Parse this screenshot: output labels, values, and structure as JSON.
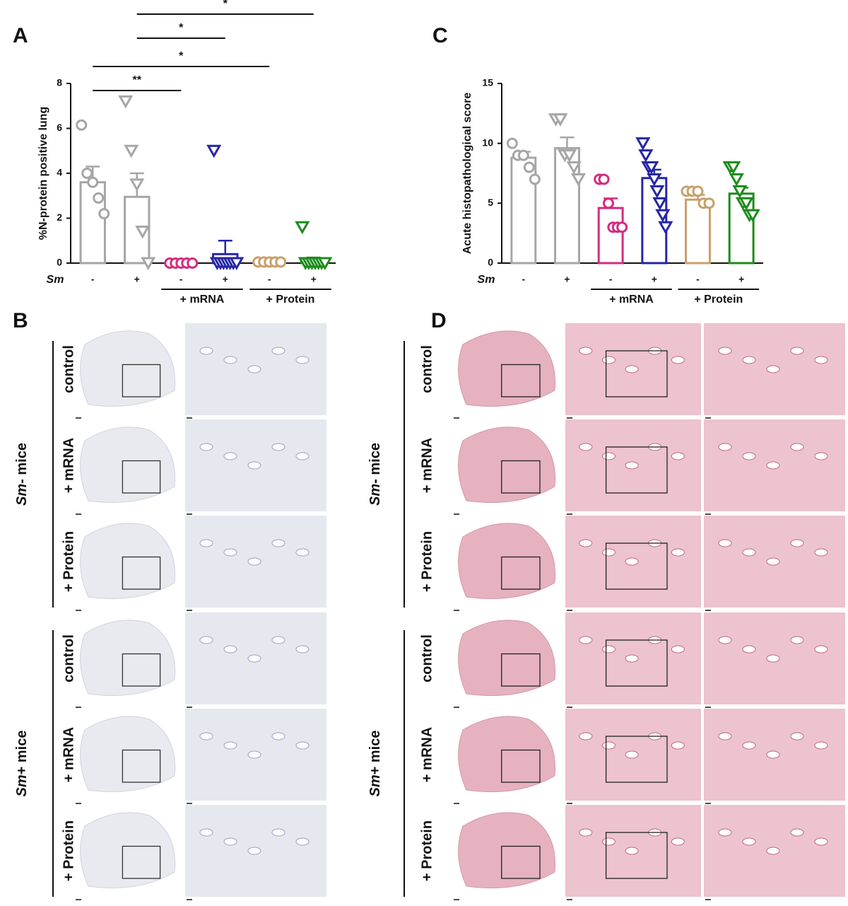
{
  "chart_data": [
    {
      "type": "bar",
      "label": "A",
      "y_label": "%N-protein positive lung",
      "categories": [
        "-",
        "+",
        "-",
        "+",
        "-",
        "+"
      ],
      "x_row_label": "Sm",
      "groups": [
        "+ mRNA",
        "+ Protein"
      ],
      "values": [
        3.6,
        2.95,
        0,
        0.4,
        0.05,
        0.15
      ],
      "errors": [
        0.7,
        1.05,
        0,
        0.6,
        0.05,
        0.1
      ],
      "points": [
        [
          6.15,
          4.0,
          3.6,
          2.9,
          2.2
        ],
        [
          7.2,
          5.0,
          3.5,
          1.4,
          0.0
        ],
        [
          0,
          0,
          0,
          0,
          0
        ],
        [
          5.0,
          0,
          0,
          0,
          0,
          0,
          0,
          0
        ],
        [
          0.05,
          0.05,
          0.05,
          0.05,
          0.05
        ],
        [
          1.6,
          0,
          0,
          0,
          0,
          0,
          0,
          0
        ]
      ],
      "colors": [
        "#a6a6a6",
        "#a6a6a6",
        "#d42c7f",
        "#2626a6",
        "#c9a06a",
        "#1c8c1c"
      ],
      "markers": [
        "circle",
        "triangle",
        "circle",
        "triangle",
        "circle",
        "triangle"
      ],
      "ylim": [
        0,
        8
      ],
      "yticks": [
        0,
        2,
        4,
        6,
        8
      ],
      "annotations": [
        "**",
        "*",
        "*",
        "*"
      ]
    },
    {
      "type": "bar",
      "label": "C",
      "y_label": "Acute histopathological score",
      "categories": [
        "-",
        "+",
        "-",
        "+",
        "-",
        "+"
      ],
      "x_row_label": "Sm",
      "groups": [
        "+ mRNA",
        "+ Protein"
      ],
      "values": [
        8.8,
        9.6,
        4.6,
        7.1,
        5.3,
        5.8
      ],
      "errors": [
        0.5,
        0.9,
        0.8,
        0.7,
        0.4,
        0.5
      ],
      "points": [
        [
          10,
          9,
          9,
          8,
          7
        ],
        [
          12,
          12,
          9,
          9,
          8,
          7
        ],
        [
          7,
          7,
          5,
          3,
          3,
          3
        ],
        [
          10,
          9,
          8,
          8,
          7,
          6,
          5,
          4,
          3
        ],
        [
          6,
          6,
          6,
          5,
          5
        ],
        [
          8,
          8,
          7,
          6,
          5,
          5,
          4,
          4
        ]
      ],
      "colors": [
        "#a6a6a6",
        "#a6a6a6",
        "#d42c7f",
        "#2626a6",
        "#c9a06a",
        "#1c8c1c"
      ],
      "markers": [
        "circle",
        "triangle",
        "circle",
        "triangle",
        "circle",
        "triangle"
      ],
      "ylim": [
        0,
        15
      ],
      "yticks": [
        0,
        5,
        10,
        15
      ],
      "annotations": []
    }
  ],
  "panels": [
    {
      "label": "B",
      "groups": [
        {
          "italic": "Sm",
          "text": "- mice"
        },
        {
          "italic": "Sm",
          "text": "+ mice"
        }
      ],
      "rows": [
        "control",
        "+ mRNA",
        "+ Protein"
      ]
    },
    {
      "label": "D",
      "groups": [
        {
          "italic": "Sm",
          "text": "- mice"
        },
        {
          "italic": "Sm",
          "text": "+ mice"
        }
      ],
      "rows": [
        "control",
        "+ mRNA",
        "+ Protein"
      ]
    }
  ]
}
